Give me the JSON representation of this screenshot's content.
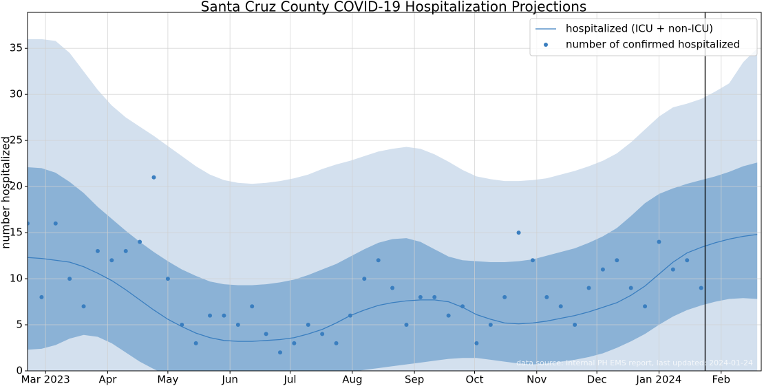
{
  "chart_data": {
    "type": "line",
    "title": "Santa Cruz County COVID-19 Hospitalization Projections",
    "y_label": "number hospitalized",
    "annotation": "data source: internal PH EMS report, last updated: 2024-01-24",
    "vline_x": "2024-01-24",
    "xlim": [
      "2023-02-20",
      "2024-02-21"
    ],
    "ylim": [
      0,
      38.9
    ],
    "yticks": [
      0,
      5,
      10,
      15,
      20,
      25,
      30,
      35
    ],
    "xticks": [
      {
        "value": "2023-03-01",
        "label": "Mar 2023"
      },
      {
        "value": "2023-04-01",
        "label": "Apr"
      },
      {
        "value": "2023-05-01",
        "label": "May"
      },
      {
        "value": "2023-06-01",
        "label": "Jun"
      },
      {
        "value": "2023-07-01",
        "label": "Jul"
      },
      {
        "value": "2023-08-01",
        "label": "Aug"
      },
      {
        "value": "2023-09-01",
        "label": "Sep"
      },
      {
        "value": "2023-10-01",
        "label": "Oct"
      },
      {
        "value": "2023-11-01",
        "label": "Nov"
      },
      {
        "value": "2023-12-01",
        "label": "Dec"
      },
      {
        "value": "2024-01-01",
        "label": "Jan 2024"
      },
      {
        "value": "2024-02-01",
        "label": "Feb"
      }
    ],
    "grid": true,
    "legend": "upper right",
    "x": [
      "2023-02-20",
      "2023-02-27",
      "2023-03-06",
      "2023-03-13",
      "2023-03-20",
      "2023-03-27",
      "2023-04-03",
      "2023-04-10",
      "2023-04-17",
      "2023-04-24",
      "2023-05-01",
      "2023-05-08",
      "2023-05-15",
      "2023-05-22",
      "2023-05-29",
      "2023-06-05",
      "2023-06-12",
      "2023-06-19",
      "2023-06-26",
      "2023-07-03",
      "2023-07-10",
      "2023-07-17",
      "2023-07-24",
      "2023-07-31",
      "2023-08-07",
      "2023-08-14",
      "2023-08-21",
      "2023-08-28",
      "2023-09-04",
      "2023-09-11",
      "2023-09-18",
      "2023-09-25",
      "2023-10-02",
      "2023-10-09",
      "2023-10-16",
      "2023-10-23",
      "2023-10-30",
      "2023-11-06",
      "2023-11-13",
      "2023-11-20",
      "2023-11-27",
      "2023-12-04",
      "2023-12-11",
      "2023-12-18",
      "2023-12-25",
      "2024-01-01",
      "2024-01-08",
      "2024-01-15",
      "2024-01-22",
      "2024-01-29",
      "2024-02-05",
      "2024-02-12",
      "2024-02-19"
    ],
    "bands": [
      {
        "color": "#d3e0ee",
        "lower": [
          0,
          0,
          0,
          0,
          0,
          0,
          0,
          0,
          0,
          0,
          0,
          0,
          0,
          0,
          0,
          0,
          0,
          0,
          0,
          0,
          0,
          0,
          0,
          0,
          0,
          0,
          0,
          0,
          0,
          0,
          0,
          0,
          0,
          0,
          0,
          0,
          0,
          0,
          0,
          0,
          0,
          0,
          0,
          0,
          0,
          0,
          0,
          0,
          0,
          0,
          0,
          0,
          0
        ],
        "upper": [
          36,
          36,
          35.8,
          34.5,
          32.5,
          30.5,
          28.8,
          27.5,
          26.5,
          25.5,
          24.4,
          23.3,
          22.2,
          21.3,
          20.7,
          20.4,
          20.3,
          20.4,
          20.6,
          20.9,
          21.3,
          21.9,
          22.4,
          22.8,
          23.3,
          23.8,
          24.1,
          24.3,
          24.1,
          23.5,
          22.7,
          21.8,
          21.1,
          20.8,
          20.6,
          20.6,
          20.7,
          20.9,
          21.3,
          21.7,
          22.2,
          22.8,
          23.6,
          24.8,
          26.2,
          27.6,
          28.6,
          29,
          29.5,
          30.3,
          31.2,
          33.5,
          35
        ]
      },
      {
        "color": "#8bb2d6",
        "lower": [
          2.3,
          2.4,
          2.8,
          3.5,
          3.9,
          3.7,
          3,
          2,
          1,
          0.2,
          -0.5,
          -1,
          -1.3,
          -1.5,
          -1.5,
          -1.5,
          -1.4,
          -1.3,
          -1.2,
          -1,
          -0.8,
          -0.5,
          -0.3,
          -0.1,
          0.1,
          0.3,
          0.5,
          0.7,
          0.9,
          1.1,
          1.3,
          1.4,
          1.4,
          1.2,
          1,
          0.8,
          0.7,
          0.8,
          1,
          1.2,
          1.5,
          1.9,
          2.5,
          3.2,
          4,
          5,
          5.9,
          6.6,
          7.1,
          7.5,
          7.8,
          7.9,
          7.8
        ],
        "upper": [
          22.1,
          22,
          21.5,
          20.5,
          19.3,
          17.8,
          16.5,
          15.2,
          14,
          12.9,
          11.9,
          11,
          10.3,
          9.7,
          9.4,
          9.3,
          9.3,
          9.4,
          9.6,
          9.9,
          10.4,
          11,
          11.6,
          12.4,
          13.2,
          13.9,
          14.3,
          14.4,
          14,
          13.2,
          12.4,
          12,
          11.9,
          11.8,
          11.8,
          11.9,
          12.1,
          12.5,
          12.9,
          13.3,
          13.9,
          14.6,
          15.5,
          16.8,
          18.2,
          19.2,
          19.8,
          20.3,
          20.7,
          21.1,
          21.6,
          22.2,
          22.6
        ]
      }
    ],
    "series": [
      {
        "name": "hospitalized (ICU + non-ICU)",
        "color": "#3a7ebf",
        "values": [
          12.3,
          12.2,
          12,
          11.8,
          11.3,
          10.6,
          9.8,
          8.8,
          7.7,
          6.6,
          5.6,
          4.8,
          4.1,
          3.6,
          3.3,
          3.2,
          3.2,
          3.3,
          3.4,
          3.6,
          4,
          4.5,
          5.2,
          6,
          6.6,
          7.1,
          7.4,
          7.6,
          7.7,
          7.7,
          7.5,
          6.9,
          6.1,
          5.6,
          5.2,
          5.1,
          5.2,
          5.4,
          5.7,
          6,
          6.4,
          6.9,
          7.4,
          8.2,
          9.2,
          10.5,
          11.8,
          12.8,
          13.4,
          13.9,
          14.3,
          14.6,
          14.8
        ]
      }
    ],
    "points": {
      "name": "number of confirmed hospitalized",
      "color": "#3a7ebf",
      "x": [
        "2023-02-20",
        "2023-02-27",
        "2023-03-06",
        "2023-03-13",
        "2023-03-20",
        "2023-03-27",
        "2023-04-03",
        "2023-04-10",
        "2023-04-17",
        "2023-04-24",
        "2023-05-01",
        "2023-05-08",
        "2023-05-15",
        "2023-05-22",
        "2023-05-29",
        "2023-06-05",
        "2023-06-12",
        "2023-06-19",
        "2023-06-26",
        "2023-07-03",
        "2023-07-10",
        "2023-07-17",
        "2023-07-24",
        "2023-07-31",
        "2023-08-07",
        "2023-08-14",
        "2023-08-21",
        "2023-08-28",
        "2023-09-04",
        "2023-09-11",
        "2023-09-18",
        "2023-09-25",
        "2023-10-02",
        "2023-10-09",
        "2023-10-16",
        "2023-10-23",
        "2023-10-30",
        "2023-11-06",
        "2023-11-13",
        "2023-11-20",
        "2023-11-27",
        "2023-12-04",
        "2023-12-11",
        "2023-12-18",
        "2023-12-25",
        "2024-01-01",
        "2024-01-08",
        "2024-01-15",
        "2024-01-22"
      ],
      "values": [
        16,
        8,
        16,
        10,
        7,
        13,
        12,
        13,
        14,
        21,
        10,
        5,
        3,
        6,
        6,
        5,
        7,
        4,
        2,
        3,
        5,
        4,
        3,
        6,
        10,
        12,
        9,
        5,
        8,
        8,
        6,
        7,
        3,
        5,
        8,
        15,
        12,
        8,
        7,
        5,
        9,
        11,
        12,
        9,
        7,
        14,
        11,
        12,
        9
      ]
    }
  }
}
